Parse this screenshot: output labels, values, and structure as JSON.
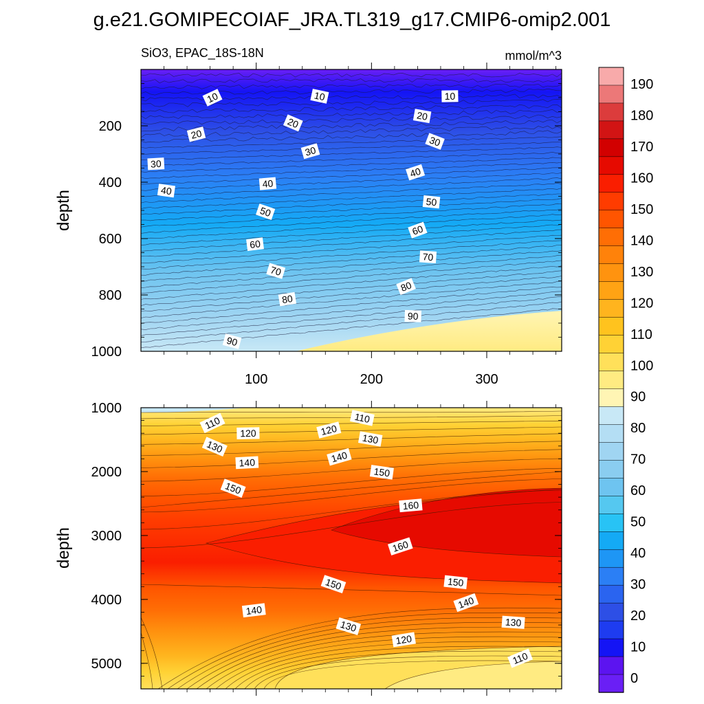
{
  "title": "g.e21.GOMIPECOIAF_JRA.TL319_g17.CMIP6-omip2.001",
  "subtitle_left": "SiO3, EPAC_18S-18N",
  "units": "mmol/m^3",
  "colorbar": {
    "ticks": [
      "0",
      "10",
      "20",
      "30",
      "40",
      "50",
      "60",
      "70",
      "80",
      "90",
      "100",
      "110",
      "120",
      "130",
      "140",
      "150",
      "160",
      "170",
      "180",
      "190"
    ],
    "colors": [
      "#6a1ff5",
      "#5c14f0",
      "#1414f5",
      "#1e3cf0",
      "#2d4fe6",
      "#2a64f0",
      "#2b7ff5",
      "#1e96f5",
      "#14aaf5",
      "#28c3f5",
      "#55c8f0",
      "#6ec4f0",
      "#8acdf0",
      "#a0d5f2",
      "#b4def4",
      "#c8e8f6",
      "#fff5b4",
      "#ffeb82",
      "#ffe05a",
      "#ffd235",
      "#ffc31e",
      "#ffb41e",
      "#ffa314",
      "#ff930f",
      "#ff820a",
      "#ff6e05",
      "#ff5500",
      "#ff3c00",
      "#fa1e00",
      "#e60a00",
      "#d20000",
      "#d21414",
      "#dc3c3c",
      "#ec7878",
      "#f8aaaa"
    ]
  },
  "chart_data": [
    {
      "type": "contour",
      "panel": "upper",
      "ylabel": "depth",
      "xlabel": "",
      "xlim": [
        0,
        365
      ],
      "ylim": [
        1000,
        0
      ],
      "xticks": [
        "100",
        "200",
        "300"
      ],
      "yticks": [
        "200",
        "400",
        "600",
        "800",
        "1000"
      ],
      "contour_labels": [
        {
          "text": "10",
          "x": 62,
          "y": 100
        },
        {
          "text": "10",
          "x": 155,
          "y": 95
        },
        {
          "text": "10",
          "x": 268,
          "y": 95
        },
        {
          "text": "20",
          "x": 48,
          "y": 230
        },
        {
          "text": "20",
          "x": 132,
          "y": 190
        },
        {
          "text": "20",
          "x": 244,
          "y": 165
        },
        {
          "text": "30",
          "x": 13,
          "y": 335
        },
        {
          "text": "30",
          "x": 147,
          "y": 290
        },
        {
          "text": "30",
          "x": 255,
          "y": 255
        },
        {
          "text": "40",
          "x": 22,
          "y": 430
        },
        {
          "text": "40",
          "x": 110,
          "y": 405
        },
        {
          "text": "40",
          "x": 238,
          "y": 365
        },
        {
          "text": "50",
          "x": 108,
          "y": 505
        },
        {
          "text": "50",
          "x": 252,
          "y": 470
        },
        {
          "text": "60",
          "x": 99,
          "y": 620
        },
        {
          "text": "60",
          "x": 240,
          "y": 570
        },
        {
          "text": "70",
          "x": 117,
          "y": 715
        },
        {
          "text": "70",
          "x": 249,
          "y": 665
        },
        {
          "text": "80",
          "x": 127,
          "y": 815
        },
        {
          "text": "80",
          "x": 230,
          "y": 770
        },
        {
          "text": "90",
          "x": 79,
          "y": 965
        },
        {
          "text": "90",
          "x": 236,
          "y": 875
        }
      ]
    },
    {
      "type": "contour",
      "panel": "lower",
      "ylabel": "depth",
      "xlabel": "",
      "xlim": [
        0,
        365
      ],
      "ylim": [
        5400,
        1000
      ],
      "yticks": [
        "1000",
        "2000",
        "3000",
        "4000",
        "5000"
      ],
      "contour_labels": [
        {
          "text": "110",
          "x": 62,
          "y": 1240
        },
        {
          "text": "110",
          "x": 192,
          "y": 1160
        },
        {
          "text": "120",
          "x": 93,
          "y": 1400
        },
        {
          "text": "120",
          "x": 163,
          "y": 1350
        },
        {
          "text": "130",
          "x": 64,
          "y": 1610
        },
        {
          "text": "130",
          "x": 199,
          "y": 1490
        },
        {
          "text": "140",
          "x": 92,
          "y": 1860
        },
        {
          "text": "140",
          "x": 172,
          "y": 1770
        },
        {
          "text": "150",
          "x": 80,
          "y": 2260
        },
        {
          "text": "150",
          "x": 209,
          "y": 2010
        },
        {
          "text": "160",
          "x": 234,
          "y": 2530
        },
        {
          "text": "160",
          "x": 225,
          "y": 3170
        },
        {
          "text": "150",
          "x": 167,
          "y": 3760
        },
        {
          "text": "150",
          "x": 273,
          "y": 3730
        },
        {
          "text": "140",
          "x": 98,
          "y": 4170
        },
        {
          "text": "140",
          "x": 282,
          "y": 4050
        },
        {
          "text": "130",
          "x": 180,
          "y": 4420
        },
        {
          "text": "130",
          "x": 323,
          "y": 4360
        },
        {
          "text": "120",
          "x": 228,
          "y": 4630
        },
        {
          "text": "110",
          "x": 329,
          "y": 4920
        }
      ]
    }
  ]
}
